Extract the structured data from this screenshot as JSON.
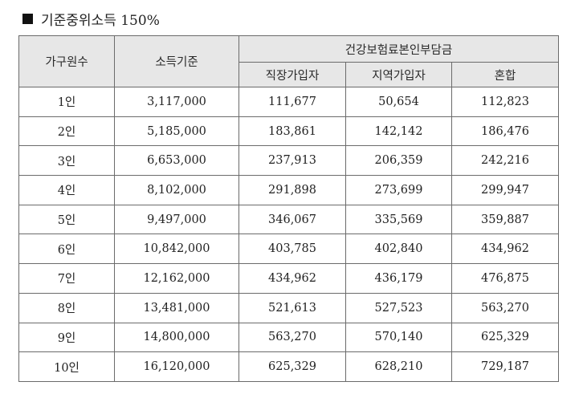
{
  "title": "기준중위소득 150%",
  "headers": {
    "household": "가구원수",
    "income": "소득기준",
    "premium_group": "건강보험료본인부담금",
    "employee": "직장가입자",
    "regional": "지역가입자",
    "mixed": "혼합"
  },
  "rows": [
    {
      "size": "1인",
      "income": "3,117,000",
      "employee": "111,677",
      "regional": "50,654",
      "mixed": "112,823"
    },
    {
      "size": "2인",
      "income": "5,185,000",
      "employee": "183,861",
      "regional": "142,142",
      "mixed": "186,476"
    },
    {
      "size": "3인",
      "income": "6,653,000",
      "employee": "237,913",
      "regional": "206,359",
      "mixed": "242,216"
    },
    {
      "size": "4인",
      "income": "8,102,000",
      "employee": "291,898",
      "regional": "273,699",
      "mixed": "299,947"
    },
    {
      "size": "5인",
      "income": "9,497,000",
      "employee": "346,067",
      "regional": "335,569",
      "mixed": "359,887"
    },
    {
      "size": "6인",
      "income": "10,842,000",
      "employee": "403,785",
      "regional": "402,840",
      "mixed": "434,962"
    },
    {
      "size": "7인",
      "income": "12,162,000",
      "employee": "434,962",
      "regional": "436,179",
      "mixed": "476,875"
    },
    {
      "size": "8인",
      "income": "13,481,000",
      "employee": "521,613",
      "regional": "527,523",
      "mixed": "563,270"
    },
    {
      "size": "9인",
      "income": "14,800,000",
      "employee": "563,270",
      "regional": "570,140",
      "mixed": "625,329"
    },
    {
      "size": "10인",
      "income": "16,120,000",
      "employee": "625,329",
      "regional": "628,210",
      "mixed": "729,187"
    }
  ]
}
